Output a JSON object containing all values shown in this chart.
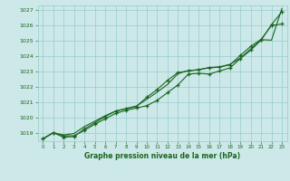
{
  "title": "Graphe pression niveau de la mer (hPa)",
  "bg_color": "#cce8e8",
  "plot_bg_color": "#cce8e8",
  "grid_color": "#99cccc",
  "line_color": "#1a6620",
  "xlim": [
    -0.5,
    23.5
  ],
  "ylim": [
    1018.5,
    1027.3
  ],
  "xticks": [
    0,
    1,
    2,
    3,
    4,
    5,
    6,
    7,
    8,
    9,
    10,
    11,
    12,
    13,
    14,
    15,
    16,
    17,
    18,
    19,
    20,
    21,
    22,
    23
  ],
  "yticks": [
    1019,
    1020,
    1021,
    1022,
    1023,
    1024,
    1025,
    1026,
    1027
  ],
  "line1_x": [
    0,
    1,
    2,
    3,
    4,
    5,
    6,
    7,
    8,
    9,
    10,
    11,
    12,
    13,
    14,
    15,
    16,
    17,
    18,
    19,
    20,
    21,
    22,
    23
  ],
  "line1_y": [
    1018.65,
    1019.05,
    1018.85,
    1018.85,
    1019.2,
    1019.6,
    1019.95,
    1020.3,
    1020.5,
    1020.65,
    1020.8,
    1021.15,
    1021.65,
    1022.15,
    1022.85,
    1022.9,
    1022.85,
    1023.05,
    1023.25,
    1023.85,
    1024.4,
    1025.05,
    1026.05,
    1026.9
  ],
  "line2_x": [
    0,
    1,
    2,
    3,
    4,
    5,
    6,
    7,
    8,
    9,
    10,
    11,
    12,
    13,
    14,
    15,
    16,
    17,
    18,
    19,
    20,
    21,
    22,
    23
  ],
  "line2_y": [
    1018.65,
    1019.05,
    1018.75,
    1018.8,
    1019.3,
    1019.7,
    1020.1,
    1020.45,
    1020.6,
    1020.75,
    1021.35,
    1021.85,
    1022.45,
    1022.95,
    1023.05,
    1023.15,
    1023.25,
    1023.3,
    1023.45,
    1024.05,
    1024.65,
    1025.1,
    1026.0,
    1026.1
  ],
  "line3_x": [
    0,
    1,
    2,
    3,
    4,
    5,
    6,
    7,
    8,
    9,
    10,
    11,
    12,
    13,
    14,
    15,
    16,
    17,
    18,
    19,
    20,
    21,
    22,
    23
  ],
  "line3_y": [
    1018.65,
    1019.05,
    1018.9,
    1019.0,
    1019.45,
    1019.8,
    1020.15,
    1020.45,
    1020.62,
    1020.78,
    1021.22,
    1021.68,
    1022.18,
    1022.88,
    1023.08,
    1023.12,
    1023.28,
    1023.32,
    1023.48,
    1023.88,
    1024.48,
    1025.08,
    1025.05,
    1027.1
  ]
}
